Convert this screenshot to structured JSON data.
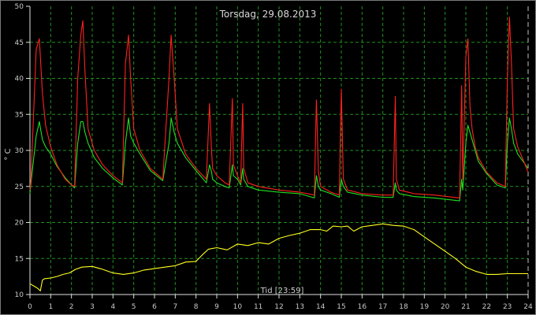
{
  "chart_data": {
    "type": "line",
    "title": "Torsdag, 29.08.2013",
    "xlabel": "Tid [23:59]",
    "ylabel": "° C",
    "xlim": [
      0,
      24
    ],
    "ylim": [
      10,
      50
    ],
    "x_ticks": [
      "0",
      "1",
      "2",
      "3",
      "4",
      "5",
      "6",
      "7",
      "8",
      "9",
      "10",
      "11",
      "12",
      "13",
      "14",
      "15",
      "16",
      "17",
      "18",
      "19",
      "20",
      "21",
      "22",
      "23",
      "24"
    ],
    "y_ticks": [
      "10",
      "15",
      "20",
      "25",
      "30",
      "35",
      "40",
      "45",
      "50"
    ],
    "grid": true,
    "legend": "none",
    "colors": {
      "series1": "#ff2020",
      "series2": "#20e020",
      "series3": "#ffff20",
      "grid": "#1f8f1f",
      "axis": "#e0e0e0"
    },
    "series": [
      {
        "x": [
          0,
          0.05,
          0.3,
          0.45,
          0.6,
          0.75,
          1,
          1.3,
          1.7,
          2.0,
          2.15,
          2.3,
          2.45,
          2.55,
          2.65,
          2.8,
          3.1,
          3.5,
          4,
          4.45,
          4.6,
          4.75,
          4.85,
          5,
          5.3,
          5.8,
          6.4,
          6.7,
          6.8,
          6.95,
          7.1,
          7.5,
          8,
          8.5,
          8.65,
          8.75,
          8.8,
          9,
          9.4,
          9.6,
          9.75,
          9.8,
          10,
          10.15,
          10.25,
          10.3,
          10.5,
          11,
          12,
          13,
          13.7,
          13.8,
          13.9,
          14,
          14.5,
          14.9,
          15.0,
          15.1,
          15.3,
          16,
          17,
          17.5,
          17.6,
          17.65,
          17.8,
          18.5,
          19.5,
          20.7,
          20.8,
          20.85,
          21.0,
          21.1,
          21.2,
          21.3,
          21.45,
          21.6,
          22,
          22.5,
          22.9,
          23.0,
          23.1,
          23.2,
          23.3,
          23.5,
          24
        ],
        "values": [
          24.5,
          26.0,
          44.0,
          45.5,
          38.0,
          33.5,
          30.5,
          28.0,
          26.0,
          25.2,
          25.0,
          40.0,
          46.0,
          48.0,
          41.0,
          33.0,
          30.0,
          28.0,
          26.5,
          25.5,
          42.0,
          46.0,
          40.0,
          33.0,
          30.0,
          27.5,
          26.0,
          40.0,
          46.0,
          40.0,
          33.0,
          29.5,
          27.5,
          26.0,
          36.5,
          30.0,
          27.5,
          26.5,
          25.5,
          25.2,
          37.2,
          28.0,
          26.5,
          25.5,
          36.5,
          27.5,
          25.5,
          25.0,
          24.5,
          24.2,
          23.8,
          37.0,
          27.0,
          25.0,
          24.2,
          23.8,
          38.5,
          26.0,
          24.5,
          24.0,
          23.8,
          23.8,
          37.5,
          26.0,
          24.5,
          24.0,
          23.8,
          23.4,
          39.0,
          26.0,
          43.0,
          45.5,
          36.0,
          33.0,
          30.5,
          29.0,
          27.0,
          25.5,
          25.0,
          40.0,
          48.5,
          42.0,
          33.0,
          30.5,
          27.0
        ]
      },
      {
        "x": [
          0,
          0.05,
          0.3,
          0.45,
          0.6,
          0.75,
          1,
          1.3,
          1.7,
          2.0,
          2.15,
          2.3,
          2.45,
          2.55,
          2.65,
          2.8,
          3.1,
          3.5,
          4,
          4.45,
          4.6,
          4.75,
          4.85,
          5,
          5.3,
          5.8,
          6.4,
          6.7,
          6.8,
          6.95,
          7.1,
          7.5,
          8,
          8.5,
          8.65,
          8.75,
          8.8,
          9,
          9.4,
          9.6,
          9.75,
          9.8,
          10,
          10.15,
          10.25,
          10.3,
          10.5,
          11,
          12,
          13,
          13.7,
          13.8,
          13.9,
          14,
          14.5,
          14.9,
          15.0,
          15.1,
          15.3,
          16,
          17,
          17.5,
          17.6,
          17.65,
          17.8,
          18.5,
          19.5,
          20.7,
          20.8,
          20.85,
          21.0,
          21.1,
          21.2,
          21.3,
          21.45,
          21.6,
          22,
          22.5,
          22.9,
          23.0,
          23.1,
          23.2,
          23.3,
          23.5,
          24
        ],
        "values": [
          24.0,
          25.5,
          32.0,
          34.0,
          31.5,
          30.5,
          29.5,
          27.8,
          26.2,
          25.2,
          24.8,
          31.0,
          34.0,
          34.0,
          32.5,
          31.0,
          29.0,
          27.5,
          26.2,
          25.2,
          31.0,
          34.5,
          32.0,
          31.0,
          29.5,
          27.2,
          25.8,
          31.0,
          34.5,
          32.5,
          31.0,
          29.0,
          27.2,
          25.5,
          28.0,
          27.0,
          26.0,
          25.5,
          25.0,
          24.8,
          28.0,
          26.5,
          26.0,
          25.2,
          27.5,
          26.0,
          25.0,
          24.5,
          24.2,
          24.0,
          23.4,
          26.5,
          25.0,
          24.5,
          24.0,
          23.5,
          26.0,
          25.0,
          24.2,
          23.8,
          23.5,
          23.5,
          25.5,
          24.5,
          24.0,
          23.6,
          23.4,
          23.0,
          26.0,
          24.5,
          31.0,
          33.5,
          32.5,
          31.5,
          30.0,
          28.5,
          26.8,
          25.2,
          24.8,
          31.0,
          34.5,
          33.0,
          31.0,
          29.5,
          27.5
        ]
      },
      {
        "x": [
          0,
          0.3,
          0.4,
          0.5,
          0.6,
          0.7,
          1,
          1.3,
          1.6,
          1.9,
          2.2,
          2.5,
          3,
          3.5,
          4,
          4.5,
          5,
          5.5,
          6,
          6.5,
          7,
          7.5,
          8,
          8.3,
          8.6,
          9,
          9.5,
          10,
          10.5,
          11,
          11.5,
          12,
          12.5,
          13,
          13.5,
          14,
          14.3,
          14.6,
          15,
          15.3,
          15.6,
          16,
          16.5,
          17,
          17.5,
          18,
          18.5,
          19,
          19.5,
          20,
          20.5,
          21,
          21.5,
          22,
          22.5,
          23,
          23.5,
          24
        ],
        "values": [
          11.5,
          11.0,
          10.8,
          10.5,
          12.0,
          12.2,
          12.3,
          12.5,
          12.8,
          13.0,
          13.5,
          13.8,
          13.9,
          13.5,
          13.0,
          12.8,
          13.0,
          13.4,
          13.6,
          13.8,
          14.0,
          14.5,
          14.6,
          15.5,
          16.3,
          16.5,
          16.2,
          17.0,
          16.8,
          17.2,
          17.0,
          17.8,
          18.2,
          18.5,
          19.0,
          19.0,
          18.8,
          19.5,
          19.4,
          19.5,
          18.8,
          19.4,
          19.6,
          19.8,
          19.6,
          19.5,
          19.0,
          18.0,
          17.0,
          16.0,
          15.0,
          13.8,
          13.2,
          12.8,
          12.8,
          12.9,
          12.9,
          12.9
        ]
      }
    ]
  }
}
